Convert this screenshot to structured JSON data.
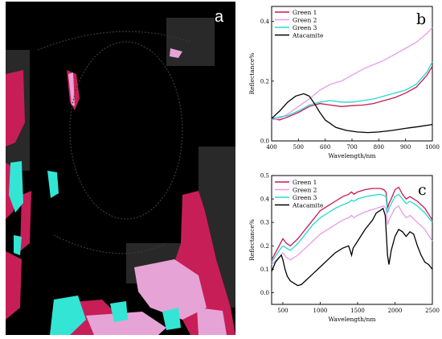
{
  "panel_a": {
    "letter": "a",
    "colors": {
      "background": "#000000",
      "magenta": "#c71e58",
      "pink": "#e6a3d6",
      "cyan": "#33e5d4"
    }
  },
  "chart_data": [
    {
      "panel": "b",
      "type": "line",
      "xlabel": "Wavelength/nm",
      "ylabel": "Reflectance%",
      "xlim": [
        400,
        1000
      ],
      "ylim": [
        0,
        0.45
      ],
      "xticks": [
        400,
        500,
        600,
        700,
        800,
        900,
        1000
      ],
      "yticks": [
        0.0,
        0.2,
        0.4
      ],
      "legend_position": "top-left",
      "series": [
        {
          "name": "Green 1",
          "color": "#c8194e",
          "x": [
            400,
            430,
            460,
            500,
            540,
            580,
            620,
            660,
            700,
            740,
            780,
            820,
            860,
            900,
            940,
            980,
            1000
          ],
          "y": [
            0.075,
            0.07,
            0.08,
            0.095,
            0.115,
            0.125,
            0.12,
            0.115,
            0.118,
            0.12,
            0.125,
            0.135,
            0.145,
            0.16,
            0.18,
            0.22,
            0.25
          ]
        },
        {
          "name": "Green 2",
          "color": "#ea9be8",
          "x": [
            400,
            430,
            460,
            500,
            540,
            580,
            620,
            660,
            700,
            740,
            780,
            820,
            860,
            900,
            940,
            980,
            1000
          ],
          "y": [
            0.07,
            0.075,
            0.09,
            0.115,
            0.14,
            0.17,
            0.19,
            0.2,
            0.22,
            0.24,
            0.255,
            0.27,
            0.29,
            0.31,
            0.33,
            0.36,
            0.38
          ]
        },
        {
          "name": "Green 3",
          "color": "#26d9d2",
          "x": [
            400,
            430,
            460,
            500,
            540,
            580,
            620,
            660,
            700,
            740,
            780,
            820,
            860,
            900,
            940,
            980,
            1000
          ],
          "y": [
            0.075,
            0.08,
            0.085,
            0.1,
            0.12,
            0.13,
            0.135,
            0.13,
            0.13,
            0.135,
            0.14,
            0.15,
            0.16,
            0.17,
            0.19,
            0.23,
            0.265
          ]
        },
        {
          "name": "Atacamite",
          "color": "#000000",
          "x": [
            400,
            430,
            460,
            490,
            520,
            540,
            560,
            580,
            600,
            640,
            680,
            720,
            760,
            800,
            850,
            900,
            950,
            1000
          ],
          "y": [
            0.075,
            0.1,
            0.13,
            0.15,
            0.158,
            0.15,
            0.125,
            0.095,
            0.07,
            0.045,
            0.035,
            0.03,
            0.028,
            0.03,
            0.035,
            0.042,
            0.048,
            0.055
          ]
        }
      ]
    },
    {
      "panel": "c",
      "type": "line",
      "xlabel": "Wavelength/nm",
      "ylabel": "Reflectance%",
      "xlim": [
        350,
        2500
      ],
      "ylim": [
        -0.05,
        0.5
      ],
      "xticks": [
        500,
        1000,
        1500,
        2000,
        2500
      ],
      "yticks": [
        0.0,
        0.1,
        0.2,
        0.3,
        0.4,
        0.5
      ],
      "legend_position": "top-left",
      "series": [
        {
          "name": "Green 1",
          "color": "#c8194e",
          "x": [
            350,
            450,
            500,
            550,
            600,
            700,
            800,
            900,
            1000,
            1100,
            1200,
            1300,
            1380,
            1420,
            1450,
            1500,
            1600,
            1700,
            1800,
            1850,
            1880,
            1900,
            1920,
            1950,
            2000,
            2050,
            2100,
            2150,
            2200,
            2300,
            2400,
            2500
          ],
          "y": [
            0.14,
            0.2,
            0.23,
            0.21,
            0.2,
            0.23,
            0.27,
            0.31,
            0.35,
            0.37,
            0.39,
            0.41,
            0.42,
            0.43,
            0.42,
            0.43,
            0.44,
            0.445,
            0.445,
            0.44,
            0.43,
            0.36,
            0.38,
            0.4,
            0.44,
            0.45,
            0.42,
            0.4,
            0.41,
            0.39,
            0.36,
            0.31
          ]
        },
        {
          "name": "Green 2",
          "color": "#ea9be8",
          "x": [
            350,
            450,
            500,
            550,
            600,
            700,
            800,
            900,
            1000,
            1100,
            1200,
            1300,
            1380,
            1420,
            1450,
            1500,
            1600,
            1700,
            1800,
            1850,
            1880,
            1900,
            1920,
            1950,
            2000,
            2050,
            2100,
            2150,
            2200,
            2300,
            2400,
            2500
          ],
          "y": [
            0.12,
            0.15,
            0.17,
            0.15,
            0.14,
            0.16,
            0.19,
            0.22,
            0.25,
            0.27,
            0.29,
            0.31,
            0.32,
            0.33,
            0.32,
            0.33,
            0.345,
            0.355,
            0.365,
            0.37,
            0.36,
            0.29,
            0.31,
            0.33,
            0.36,
            0.37,
            0.34,
            0.32,
            0.33,
            0.3,
            0.27,
            0.22
          ]
        },
        {
          "name": "Green 3",
          "color": "#26d9d2",
          "x": [
            350,
            450,
            500,
            550,
            600,
            700,
            800,
            900,
            1000,
            1100,
            1200,
            1300,
            1380,
            1420,
            1450,
            1500,
            1600,
            1700,
            1800,
            1850,
            1880,
            1900,
            1920,
            1950,
            2000,
            2050,
            2100,
            2150,
            2200,
            2300,
            2400,
            2500
          ],
          "y": [
            0.13,
            0.18,
            0.2,
            0.19,
            0.18,
            0.21,
            0.25,
            0.29,
            0.32,
            0.34,
            0.36,
            0.375,
            0.385,
            0.395,
            0.39,
            0.4,
            0.41,
            0.415,
            0.42,
            0.415,
            0.41,
            0.34,
            0.36,
            0.38,
            0.41,
            0.42,
            0.4,
            0.38,
            0.39,
            0.37,
            0.34,
            0.3
          ]
        },
        {
          "name": "Atacamite",
          "color": "#000000",
          "x": [
            350,
            400,
            450,
            480,
            500,
            530,
            560,
            600,
            650,
            700,
            750,
            800,
            900,
            1000,
            1100,
            1200,
            1300,
            1380,
            1400,
            1420,
            1440,
            1500,
            1600,
            1700,
            1750,
            1800,
            1840,
            1870,
            1900,
            1920,
            1950,
            2000,
            2050,
            2100,
            2150,
            2200,
            2250,
            2300,
            2350,
            2400,
            2450,
            2500
          ],
          "y": [
            0.09,
            0.13,
            0.15,
            0.16,
            0.14,
            0.1,
            0.07,
            0.05,
            0.04,
            0.03,
            0.035,
            0.05,
            0.08,
            0.11,
            0.14,
            0.17,
            0.19,
            0.2,
            0.18,
            0.16,
            0.19,
            0.22,
            0.27,
            0.31,
            0.34,
            0.35,
            0.36,
            0.33,
            0.16,
            0.12,
            0.18,
            0.24,
            0.27,
            0.26,
            0.24,
            0.26,
            0.25,
            0.2,
            0.16,
            0.13,
            0.12,
            0.1
          ]
        }
      ]
    }
  ]
}
